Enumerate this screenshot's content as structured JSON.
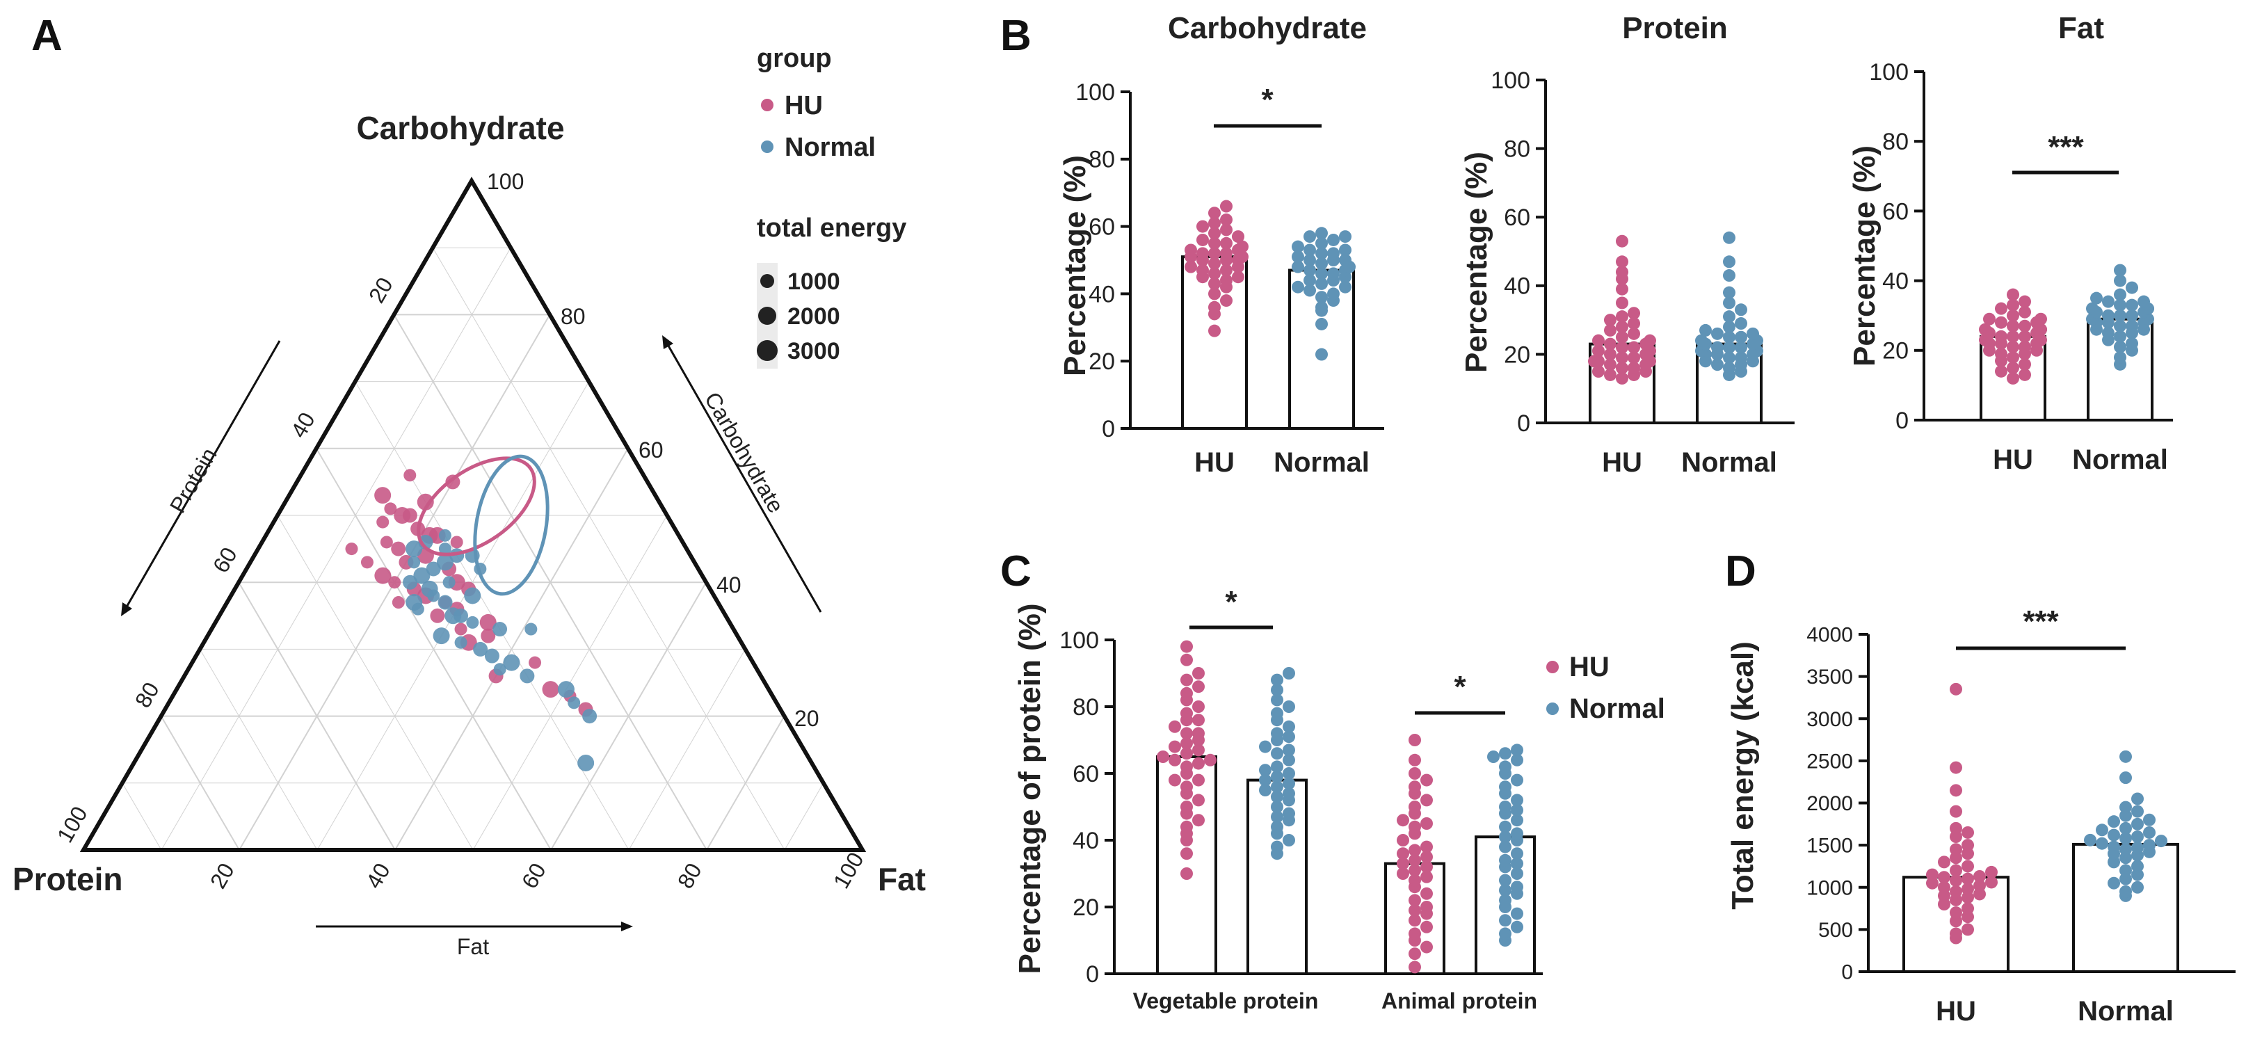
{
  "colors": {
    "hu": "#C85A87",
    "normal": "#5F93B6",
    "axis": "#111111",
    "grid": "#D2D2D2"
  },
  "panels": {
    "a": "A",
    "b": "B",
    "c": "C",
    "d": "D"
  },
  "ternary": {
    "vertices": {
      "top": "Carbohydrate",
      "left": "Protein",
      "right": "Fat"
    },
    "ticks": [
      "20",
      "40",
      "60",
      "80",
      "100"
    ],
    "arrow_labels": {
      "left": "Protein",
      "right": "Carbohydrate",
      "bottom": "Fat"
    },
    "legend": {
      "group_title": "group",
      "groups": [
        "HU",
        "Normal"
      ],
      "energy_title": "total energy",
      "energy_levels": [
        "1000",
        "2000",
        "3000"
      ]
    },
    "hu_points": [
      [
        56,
        14
      ],
      [
        55,
        20
      ],
      [
        53,
        12
      ],
      [
        51,
        14
      ],
      [
        50,
        17
      ],
      [
        50,
        16
      ],
      [
        49,
        14
      ],
      [
        48,
        19
      ],
      [
        47,
        21
      ],
      [
        46,
        16
      ],
      [
        45,
        18
      ],
      [
        44,
        22
      ],
      [
        43,
        15
      ],
      [
        42,
        26
      ],
      [
        41,
        18
      ],
      [
        40,
        20
      ],
      [
        39,
        23
      ],
      [
        38,
        25
      ],
      [
        37,
        28
      ],
      [
        36,
        30
      ],
      [
        34,
        35
      ],
      [
        33,
        32
      ],
      [
        32,
        36
      ],
      [
        31,
        34
      ],
      [
        28,
        44
      ],
      [
        26,
        40
      ],
      [
        24,
        48
      ],
      [
        23,
        51
      ],
      [
        21,
        54
      ],
      [
        47,
        22
      ],
      [
        45,
        12
      ],
      [
        43,
        20
      ],
      [
        40,
        28
      ],
      [
        37,
        22
      ],
      [
        35,
        28
      ],
      [
        52,
        18
      ],
      [
        46,
        25
      ],
      [
        39,
        30
      ]
    ],
    "normal_points": [
      [
        47,
        23
      ],
      [
        46,
        21
      ],
      [
        45,
        20
      ],
      [
        45,
        24
      ],
      [
        44,
        28
      ],
      [
        43,
        25
      ],
      [
        43,
        21
      ],
      [
        42,
        24
      ],
      [
        41,
        23
      ],
      [
        40,
        27
      ],
      [
        40,
        22
      ],
      [
        39,
        25
      ],
      [
        38,
        26
      ],
      [
        37,
        28
      ],
      [
        37,
        24
      ],
      [
        36,
        25
      ],
      [
        35,
        31
      ],
      [
        35,
        30
      ],
      [
        34,
        33
      ],
      [
        33,
        37
      ],
      [
        32,
        30
      ],
      [
        31,
        33
      ],
      [
        29,
        38
      ],
      [
        28,
        41
      ],
      [
        27,
        40
      ],
      [
        26,
        44
      ],
      [
        24,
        50
      ],
      [
        22,
        52
      ],
      [
        20,
        55
      ],
      [
        13,
        58
      ],
      [
        42,
        30
      ],
      [
        44,
        26
      ],
      [
        38,
        31
      ],
      [
        33,
        41
      ],
      [
        30,
        36
      ]
    ]
  },
  "chart_data": [
    {
      "type": "bar",
      "title": "Carbohydrate",
      "categories": [
        "HU",
        "Normal"
      ],
      "values": [
        51,
        47
      ],
      "ylabel": "Percentage (%)",
      "ylim": [
        0,
        100
      ],
      "yticks": [
        "0",
        "20",
        "40",
        "60",
        "80",
        "100"
      ],
      "significance": "*",
      "points": {
        "HU": [
          66,
          64,
          62,
          60,
          58,
          57,
          56,
          55,
          54,
          53,
          53,
          52,
          52,
          51,
          50,
          50,
          49,
          48,
          47,
          47,
          46,
          45,
          44,
          43,
          42,
          40,
          38,
          36,
          34,
          29,
          55,
          51,
          48,
          61,
          59,
          45,
          52,
          50
        ],
        "Normal": [
          58,
          57,
          56,
          55,
          54,
          53,
          52,
          51,
          50,
          50,
          49,
          48,
          47,
          46,
          45,
          44,
          43,
          42,
          41,
          40,
          39,
          38,
          36,
          35,
          31,
          22,
          48,
          52,
          57,
          44,
          47,
          53,
          50,
          42,
          46
        ]
      }
    },
    {
      "type": "bar",
      "title": "Protein",
      "categories": [
        "HU",
        "Normal"
      ],
      "values": [
        23,
        23
      ],
      "ylabel": "Percentage (%)",
      "ylim": [
        0,
        100
      ],
      "yticks": [
        "0",
        "20",
        "40",
        "60",
        "80",
        "100"
      ],
      "significance": "",
      "points": {
        "HU": [
          53,
          47,
          44,
          42,
          39,
          35,
          32,
          31,
          30,
          28,
          27,
          25,
          24,
          23,
          22,
          21,
          20,
          19,
          18,
          18,
          17,
          16,
          15,
          14,
          14,
          13,
          20,
          22,
          26,
          19,
          17,
          15,
          24,
          21,
          16,
          18,
          29,
          23
        ],
        "Normal": [
          54,
          47,
          43,
          38,
          35,
          33,
          31,
          29,
          28,
          27,
          26,
          25,
          24,
          23,
          22,
          22,
          21,
          20,
          20,
          19,
          18,
          17,
          16,
          15,
          14,
          21,
          23,
          25,
          19,
          17,
          18,
          20,
          26,
          22,
          24
        ]
      }
    },
    {
      "type": "bar",
      "title": "Fat",
      "categories": [
        "HU",
        "Normal"
      ],
      "values": [
        24,
        29
      ],
      "ylabel": "Percentage (%)",
      "ylim": [
        0,
        100
      ],
      "yticks": [
        "0",
        "20",
        "40",
        "60",
        "80",
        "100"
      ],
      "significance": "***",
      "points": {
        "HU": [
          36,
          34,
          33,
          32,
          31,
          30,
          29,
          29,
          28,
          28,
          27,
          27,
          26,
          26,
          25,
          25,
          24,
          24,
          23,
          23,
          22,
          22,
          21,
          21,
          20,
          20,
          19,
          19,
          18,
          17,
          16,
          15,
          14,
          13,
          12,
          26,
          24,
          22
        ],
        "Normal": [
          43,
          40,
          38,
          36,
          35,
          34,
          33,
          33,
          32,
          32,
          31,
          31,
          30,
          30,
          29,
          29,
          28,
          28,
          27,
          27,
          26,
          26,
          25,
          25,
          24,
          23,
          22,
          21,
          20,
          18,
          16,
          30,
          32,
          28,
          34
        ]
      }
    },
    {
      "type": "bar",
      "title": "",
      "categories": [
        "Vegetable protein",
        "Animal protein"
      ],
      "series": [
        {
          "name": "HU",
          "values": [
            65,
            33
          ]
        },
        {
          "name": "Normal",
          "values": [
            58,
            41
          ]
        }
      ],
      "ylabel": "Percentage of protein (%)",
      "ylim": [
        0,
        100
      ],
      "yticks": [
        "0",
        "20",
        "40",
        "60",
        "80",
        "100"
      ],
      "significance": [
        "*",
        "*"
      ],
      "legend": [
        "HU",
        "Normal"
      ],
      "points": {
        "veg_HU": [
          98,
          94,
          90,
          88,
          86,
          84,
          82,
          80,
          78,
          76,
          74,
          72,
          70,
          69,
          68,
          67,
          66,
          65,
          64,
          63,
          62,
          60,
          58,
          56,
          54,
          52,
          50,
          48,
          46,
          44,
          42,
          40,
          36,
          30,
          72,
          64,
          58,
          76
        ],
        "veg_Normal": [
          90,
          88,
          85,
          82,
          80,
          78,
          76,
          74,
          72,
          70,
          68,
          66,
          64,
          62,
          60,
          59,
          58,
          57,
          56,
          55,
          54,
          52,
          50,
          48,
          46,
          44,
          42,
          40,
          38,
          36,
          61,
          53,
          67,
          47,
          71
        ],
        "ani_HU": [
          70,
          64,
          60,
          58,
          56,
          54,
          52,
          50,
          48,
          46,
          44,
          42,
          40,
          38,
          36,
          35,
          34,
          33,
          32,
          31,
          30,
          28,
          26,
          24,
          22,
          20,
          18,
          16,
          14,
          12,
          10,
          8,
          6,
          2,
          45,
          37,
          29,
          19
        ],
        "ani_Normal": [
          67,
          66,
          65,
          64,
          62,
          60,
          58,
          56,
          54,
          52,
          50,
          48,
          46,
          44,
          42,
          40,
          38,
          36,
          34,
          32,
          30,
          28,
          26,
          24,
          22,
          20,
          18,
          16,
          14,
          12,
          10,
          49,
          41,
          33,
          25
        ]
      }
    },
    {
      "type": "bar",
      "title": "",
      "categories": [
        "HU",
        "Normal"
      ],
      "values": [
        1120,
        1510
      ],
      "ylabel": "Total energy (kcal)",
      "ylim": [
        0,
        4000
      ],
      "yticks": [
        "0",
        "500",
        "1000",
        "1500",
        "2000",
        "2500",
        "3000",
        "3500",
        "4000"
      ],
      "significance": "***",
      "points": {
        "HU": [
          3350,
          2420,
          2150,
          1900,
          1700,
          1650,
          1600,
          1500,
          1450,
          1400,
          1350,
          1300,
          1250,
          1200,
          1180,
          1150,
          1120,
          1100,
          1080,
          1050,
          1020,
          1000,
          980,
          950,
          920,
          900,
          880,
          850,
          800,
          750,
          700,
          650,
          600,
          500,
          450,
          400,
          1130,
          1060
        ],
        "Normal": [
          2550,
          2300,
          2050,
          1950,
          1900,
          1850,
          1800,
          1780,
          1750,
          1700,
          1680,
          1650,
          1620,
          1600,
          1580,
          1550,
          1520,
          1500,
          1480,
          1450,
          1420,
          1400,
          1380,
          1350,
          1300,
          1250,
          1200,
          1150,
          1100,
          1050,
          1000,
          950,
          900,
          1560,
          1470
        ]
      }
    }
  ]
}
